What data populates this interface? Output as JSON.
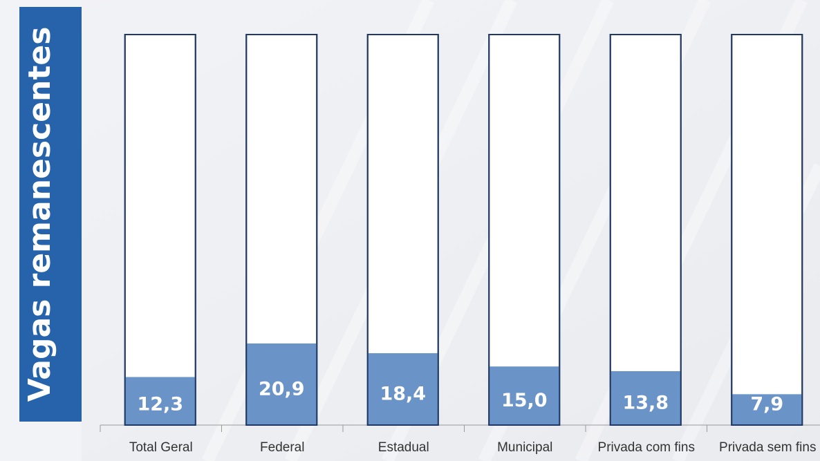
{
  "chart_data": {
    "type": "bar",
    "title": "Vagas remanescentes",
    "categories": [
      "Total Geral",
      "Federal",
      "Estadual",
      "Municipal",
      "Privada com fins",
      "Privada sem fins"
    ],
    "values": [
      12.3,
      20.9,
      18.4,
      15.0,
      13.8,
      7.9
    ],
    "value_labels": [
      "12,3",
      "20,9",
      "18,4",
      "15,0",
      "13,8",
      "7,9"
    ],
    "color": "#6a93c7",
    "ylim": [
      0,
      100
    ]
  }
}
